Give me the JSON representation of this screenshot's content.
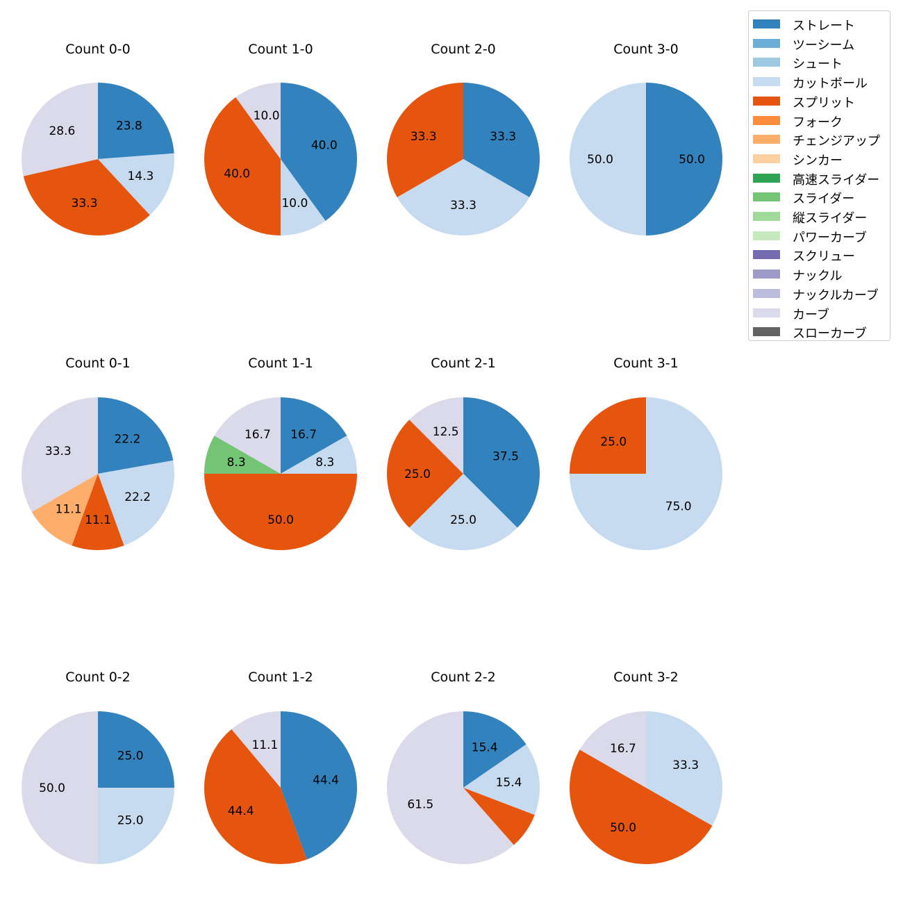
{
  "chart_data": {
    "type": "pie",
    "legend_position": "top-right",
    "legend": [
      {
        "name": "ストレート",
        "color": "#3182bd"
      },
      {
        "name": "ツーシーム",
        "color": "#6baed6"
      },
      {
        "name": "シュート",
        "color": "#9ecae1"
      },
      {
        "name": "カットボール",
        "color": "#c6dbef"
      },
      {
        "name": "スプリット",
        "color": "#e6550d"
      },
      {
        "name": "フォーク",
        "color": "#fd8d3c"
      },
      {
        "name": "チェンジアップ",
        "color": "#fdae6b"
      },
      {
        "name": "シンカー",
        "color": "#fdd0a2"
      },
      {
        "name": "高速スライダー",
        "color": "#31a354"
      },
      {
        "name": "スライダー",
        "color": "#74c476"
      },
      {
        "name": "縦スライダー",
        "color": "#a1d99b"
      },
      {
        "name": "パワーカーブ",
        "color": "#c7e9c0"
      },
      {
        "name": "スクリュー",
        "color": "#756bb1"
      },
      {
        "name": "ナックル",
        "color": "#9e9ac8"
      },
      {
        "name": "ナックルカーブ",
        "color": "#bcbddc"
      },
      {
        "name": "カーブ",
        "color": "#dadaeb"
      },
      {
        "name": "スローカーブ",
        "color": "#636363"
      }
    ],
    "pies": [
      {
        "title": "Count 0-0",
        "slices": [
          {
            "pitch": "ストレート",
            "value": 23.8,
            "label": "23.8"
          },
          {
            "pitch": "カットボール",
            "value": 14.3,
            "label": "14.3"
          },
          {
            "pitch": "スプリット",
            "value": 33.3,
            "label": "33.3"
          },
          {
            "pitch": "カーブ",
            "value": 28.6,
            "label": "28.6"
          }
        ]
      },
      {
        "title": "Count 1-0",
        "slices": [
          {
            "pitch": "ストレート",
            "value": 40.0,
            "label": "40.0"
          },
          {
            "pitch": "カットボール",
            "value": 10.0,
            "label": "10.0"
          },
          {
            "pitch": "スプリット",
            "value": 40.0,
            "label": "40.0"
          },
          {
            "pitch": "カーブ",
            "value": 10.0,
            "label": "10.0"
          }
        ]
      },
      {
        "title": "Count 2-0",
        "slices": [
          {
            "pitch": "ストレート",
            "value": 33.3,
            "label": "33.3"
          },
          {
            "pitch": "カットボール",
            "value": 33.3,
            "label": "33.3"
          },
          {
            "pitch": "スプリット",
            "value": 33.3,
            "label": "33.3"
          }
        ]
      },
      {
        "title": "Count 3-0",
        "slices": [
          {
            "pitch": "ストレート",
            "value": 50.0,
            "label": "50.0"
          },
          {
            "pitch": "カットボール",
            "value": 50.0,
            "label": "50.0"
          }
        ]
      },
      {
        "title": "Count 0-1",
        "slices": [
          {
            "pitch": "ストレート",
            "value": 22.2,
            "label": "22.2"
          },
          {
            "pitch": "カットボール",
            "value": 22.2,
            "label": "22.2"
          },
          {
            "pitch": "スプリット",
            "value": 11.1,
            "label": "11.1"
          },
          {
            "pitch": "チェンジアップ",
            "value": 11.1,
            "label": "11.1"
          },
          {
            "pitch": "カーブ",
            "value": 33.3,
            "label": "33.3"
          }
        ]
      },
      {
        "title": "Count 1-1",
        "slices": [
          {
            "pitch": "ストレート",
            "value": 16.7,
            "label": "16.7"
          },
          {
            "pitch": "カットボール",
            "value": 8.3,
            "label": "8.3"
          },
          {
            "pitch": "スプリット",
            "value": 50.0,
            "label": "50.0"
          },
          {
            "pitch": "スライダー",
            "value": 8.3,
            "label": "8.3"
          },
          {
            "pitch": "カーブ",
            "value": 16.7,
            "label": "16.7"
          }
        ]
      },
      {
        "title": "Count 2-1",
        "slices": [
          {
            "pitch": "ストレート",
            "value": 37.5,
            "label": "37.5"
          },
          {
            "pitch": "カットボール",
            "value": 25.0,
            "label": "25.0"
          },
          {
            "pitch": "スプリット",
            "value": 25.0,
            "label": "25.0"
          },
          {
            "pitch": "カーブ",
            "value": 12.5,
            "label": "12.5"
          }
        ]
      },
      {
        "title": "Count 3-1",
        "slices": [
          {
            "pitch": "カットボール",
            "value": 75.0,
            "label": "75.0"
          },
          {
            "pitch": "スプリット",
            "value": 25.0,
            "label": "25.0"
          }
        ]
      },
      {
        "title": "Count 0-2",
        "slices": [
          {
            "pitch": "ストレート",
            "value": 25.0,
            "label": "25.0"
          },
          {
            "pitch": "カットボール",
            "value": 25.0,
            "label": "25.0"
          },
          {
            "pitch": "カーブ",
            "value": 50.0,
            "label": "50.0"
          }
        ]
      },
      {
        "title": "Count 1-2",
        "slices": [
          {
            "pitch": "ストレート",
            "value": 44.4,
            "label": "44.4"
          },
          {
            "pitch": "スプリット",
            "value": 44.4,
            "label": "44.4"
          },
          {
            "pitch": "カーブ",
            "value": 11.1,
            "label": "11.1"
          }
        ]
      },
      {
        "title": "Count 2-2",
        "slices": [
          {
            "pitch": "ストレート",
            "value": 15.4,
            "label": "15.4"
          },
          {
            "pitch": "カットボール",
            "value": 15.4,
            "label": "15.4"
          },
          {
            "pitch": "スプリット",
            "value": 7.7,
            "label": ""
          },
          {
            "pitch": "カーブ",
            "value": 61.5,
            "label": "61.5"
          }
        ]
      },
      {
        "title": "Count 3-2",
        "slices": [
          {
            "pitch": "カットボール",
            "value": 33.3,
            "label": "33.3"
          },
          {
            "pitch": "スプリット",
            "value": 50.0,
            "label": "50.0"
          },
          {
            "pitch": "カーブ",
            "value": 16.7,
            "label": "16.7"
          }
        ]
      }
    ]
  }
}
